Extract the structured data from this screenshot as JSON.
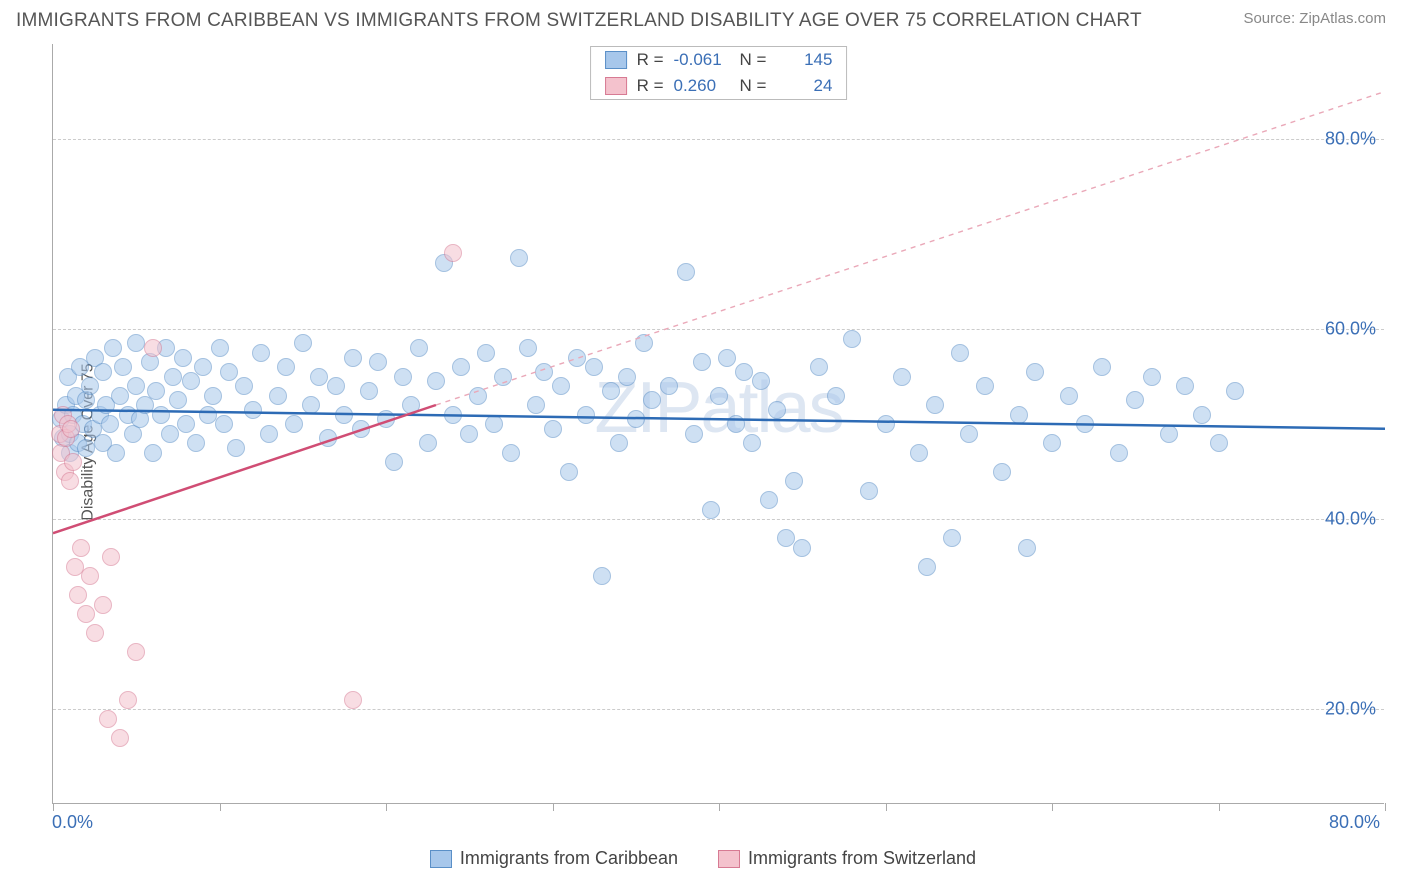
{
  "title": "IMMIGRANTS FROM CARIBBEAN VS IMMIGRANTS FROM SWITZERLAND DISABILITY AGE OVER 75 CORRELATION CHART",
  "source": "Source: ZipAtlas.com",
  "watermark_a": "ZIP",
  "watermark_b": "atlas",
  "chart": {
    "type": "scatter",
    "ylabel": "Disability Age Over 75",
    "xlim": [
      0,
      80
    ],
    "ylim": [
      10,
      90
    ],
    "xaxis_min_label": "0.0%",
    "xaxis_max_label": "80.0%",
    "ytick_labels": [
      "20.0%",
      "40.0%",
      "60.0%",
      "80.0%"
    ],
    "ytick_values": [
      20,
      40,
      60,
      80
    ],
    "xtick_values": [
      0,
      10,
      20,
      30,
      40,
      50,
      60,
      70,
      80
    ],
    "background_color": "#ffffff",
    "grid_color": "#cccccc",
    "axis_label_color": "#3b6fb6",
    "marker_radius": 9,
    "marker_opacity": 0.55,
    "series": [
      {
        "name": "Immigrants from Caribbean",
        "color_fill": "#a7c7eb",
        "color_stroke": "#5a8fc7",
        "r_label": "R =",
        "r_value": "-0.061",
        "n_label": "N =",
        "n_value": "145",
        "trend": {
          "x0": 0,
          "y0": 51.5,
          "x1": 80,
          "y1": 49.5,
          "color": "#2d6bb5",
          "width": 2.5,
          "dash": "none"
        },
        "trend_ext": null,
        "points": [
          [
            0.5,
            50.5
          ],
          [
            0.6,
            48.5
          ],
          [
            0.8,
            52
          ],
          [
            0.9,
            55
          ],
          [
            1,
            49
          ],
          [
            1,
            47
          ],
          [
            1.2,
            51
          ],
          [
            1.4,
            53
          ],
          [
            1.5,
            48
          ],
          [
            1.6,
            56
          ],
          [
            1.8,
            50
          ],
          [
            2,
            52.5
          ],
          [
            2,
            47.5
          ],
          [
            2.2,
            54
          ],
          [
            2.4,
            49.5
          ],
          [
            2.5,
            57
          ],
          [
            2.8,
            51
          ],
          [
            3,
            48
          ],
          [
            3,
            55.5
          ],
          [
            3.2,
            52
          ],
          [
            3.4,
            50
          ],
          [
            3.6,
            58
          ],
          [
            3.8,
            47
          ],
          [
            4,
            53
          ],
          [
            4.2,
            56
          ],
          [
            4.5,
            51
          ],
          [
            4.8,
            49
          ],
          [
            5,
            58.5
          ],
          [
            5,
            54
          ],
          [
            5.2,
            50.5
          ],
          [
            5.5,
            52
          ],
          [
            5.8,
            56.5
          ],
          [
            6,
            47
          ],
          [
            6.2,
            53.5
          ],
          [
            6.5,
            51
          ],
          [
            6.8,
            58
          ],
          [
            7,
            49
          ],
          [
            7.2,
            55
          ],
          [
            7.5,
            52.5
          ],
          [
            7.8,
            57
          ],
          [
            8,
            50
          ],
          [
            8.3,
            54.5
          ],
          [
            8.6,
            48
          ],
          [
            9,
            56
          ],
          [
            9.3,
            51
          ],
          [
            9.6,
            53
          ],
          [
            10,
            58
          ],
          [
            10.3,
            50
          ],
          [
            10.6,
            55.5
          ],
          [
            11,
            47.5
          ],
          [
            11.5,
            54
          ],
          [
            12,
            51.5
          ],
          [
            12.5,
            57.5
          ],
          [
            13,
            49
          ],
          [
            13.5,
            53
          ],
          [
            14,
            56
          ],
          [
            14.5,
            50
          ],
          [
            15,
            58.5
          ],
          [
            15.5,
            52
          ],
          [
            16,
            55
          ],
          [
            16.5,
            48.5
          ],
          [
            17,
            54
          ],
          [
            17.5,
            51
          ],
          [
            18,
            57
          ],
          [
            18.5,
            49.5
          ],
          [
            19,
            53.5
          ],
          [
            19.5,
            56.5
          ],
          [
            20,
            50.5
          ],
          [
            20.5,
            46
          ],
          [
            21,
            55
          ],
          [
            21.5,
            52
          ],
          [
            22,
            58
          ],
          [
            22.5,
            48
          ],
          [
            23,
            54.5
          ],
          [
            23.5,
            67
          ],
          [
            24,
            51
          ],
          [
            24.5,
            56
          ],
          [
            25,
            49
          ],
          [
            25.5,
            53
          ],
          [
            26,
            57.5
          ],
          [
            26.5,
            50
          ],
          [
            27,
            55
          ],
          [
            27.5,
            47
          ],
          [
            28,
            67.5
          ],
          [
            28.5,
            58
          ],
          [
            29,
            52
          ],
          [
            29.5,
            55.5
          ],
          [
            30,
            49.5
          ],
          [
            30.5,
            54
          ],
          [
            31,
            45
          ],
          [
            31.5,
            57
          ],
          [
            32,
            51
          ],
          [
            32.5,
            56
          ],
          [
            33,
            34
          ],
          [
            33.5,
            53.5
          ],
          [
            34,
            48
          ],
          [
            34.5,
            55
          ],
          [
            35,
            50.5
          ],
          [
            35.5,
            58.5
          ],
          [
            36,
            52.5
          ],
          [
            37,
            54
          ],
          [
            38,
            66
          ],
          [
            38.5,
            49
          ],
          [
            39,
            56.5
          ],
          [
            39.5,
            41
          ],
          [
            40,
            53
          ],
          [
            40.5,
            57
          ],
          [
            41,
            50
          ],
          [
            41.5,
            55.5
          ],
          [
            42,
            48
          ],
          [
            42.5,
            54.5
          ],
          [
            43,
            42
          ],
          [
            43.5,
            51.5
          ],
          [
            44,
            38
          ],
          [
            44.5,
            44
          ],
          [
            45,
            37
          ],
          [
            46,
            56
          ],
          [
            47,
            53
          ],
          [
            48,
            59
          ],
          [
            49,
            43
          ],
          [
            50,
            50
          ],
          [
            51,
            55
          ],
          [
            52,
            47
          ],
          [
            52.5,
            35
          ],
          [
            53,
            52
          ],
          [
            54,
            38
          ],
          [
            54.5,
            57.5
          ],
          [
            55,
            49
          ],
          [
            56,
            54
          ],
          [
            57,
            45
          ],
          [
            58,
            51
          ],
          [
            58.5,
            37
          ],
          [
            59,
            55.5
          ],
          [
            60,
            48
          ],
          [
            61,
            53
          ],
          [
            62,
            50
          ],
          [
            63,
            56
          ],
          [
            64,
            47
          ],
          [
            65,
            52.5
          ],
          [
            66,
            55
          ],
          [
            67,
            49
          ],
          [
            68,
            54
          ],
          [
            69,
            51
          ],
          [
            70,
            48
          ],
          [
            71,
            53.5
          ]
        ]
      },
      {
        "name": "Immigrants from Switzerland",
        "color_fill": "#f4c2cd",
        "color_stroke": "#d77a93",
        "r_label": "R =",
        "r_value": "0.260",
        "n_label": "N =",
        "n_value": "24",
        "trend": {
          "x0": 0,
          "y0": 38.5,
          "x1": 23,
          "y1": 52,
          "color": "#d04d74",
          "width": 2.5,
          "dash": "none"
        },
        "trend_ext": {
          "x0": 23,
          "y0": 52,
          "x1": 80,
          "y1": 85,
          "color": "#eaa8b8",
          "width": 1.4,
          "dash": "5,5"
        },
        "points": [
          [
            0.4,
            49
          ],
          [
            0.5,
            47
          ],
          [
            0.6,
            51
          ],
          [
            0.7,
            45
          ],
          [
            0.8,
            48.5
          ],
          [
            0.9,
            50
          ],
          [
            1,
            44
          ],
          [
            1.1,
            49.5
          ],
          [
            1.2,
            46
          ],
          [
            1.3,
            35
          ],
          [
            1.5,
            32
          ],
          [
            1.7,
            37
          ],
          [
            2,
            30
          ],
          [
            2.2,
            34
          ],
          [
            2.5,
            28
          ],
          [
            3,
            31
          ],
          [
            3.3,
            19
          ],
          [
            3.5,
            36
          ],
          [
            4,
            17
          ],
          [
            4.5,
            21
          ],
          [
            5,
            26
          ],
          [
            6,
            58
          ],
          [
            18,
            21
          ],
          [
            24,
            68
          ]
        ]
      }
    ]
  },
  "legend_bottom": [
    {
      "label": "Immigrants from Caribbean",
      "fill": "#a7c7eb",
      "stroke": "#5a8fc7"
    },
    {
      "label": "Immigrants from Switzerland",
      "fill": "#f4c2cd",
      "stroke": "#d77a93"
    }
  ]
}
